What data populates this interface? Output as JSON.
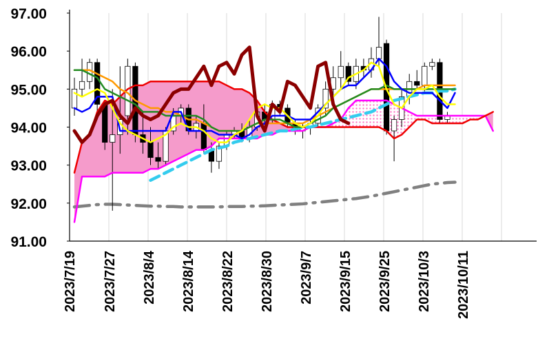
{
  "chart_data": {
    "type": "candlestick",
    "title": "",
    "xlabel": "",
    "ylabel": "",
    "ylim": [
      91.0,
      97.0
    ],
    "y_ticks": [
      "91.00",
      "92.00",
      "93.00",
      "94.00",
      "95.00",
      "96.00",
      "97.00"
    ],
    "x_tick_labels": [
      "2023/7/19",
      "2023/7/27",
      "2023/8/4",
      "2023/8/14",
      "2023/8/22",
      "2023/8/30",
      "2023/9/7",
      "2023/9/15",
      "2023/9/25",
      "2023/10/3",
      "2023/10/11"
    ],
    "grid": {
      "vertical": true,
      "horizontal": false
    },
    "legend": "none",
    "colors": {
      "cloud_bullish": "#f59bcb",
      "cloud_dotted": "#ff79c8",
      "span_a": "#ee0000",
      "span_b": "#ff00ff",
      "tenkan": "#0000ff",
      "kijun": "#228b22",
      "short_ma": "#ffff00",
      "mid_ma": "#ff9900",
      "chikou": "#8b0000",
      "ma_mid_dashed": "#33ccee",
      "ma_long_dashdot": "#808080",
      "candle_up": "#ffffff",
      "candle_down": "#000000"
    },
    "candles": [
      [
        94.5,
        95.3,
        94.3,
        95.0
      ],
      [
        95.0,
        95.8,
        94.8,
        95.2
      ],
      [
        95.2,
        95.8,
        95.0,
        95.7
      ],
      [
        95.7,
        95.8,
        94.2,
        94.6
      ],
      [
        94.6,
        94.7,
        93.4,
        93.6
      ],
      [
        93.6,
        95.0,
        91.8,
        93.8
      ],
      [
        93.8,
        95.6,
        93.3,
        94.2
      ],
      [
        94.3,
        95.8,
        93.8,
        95.6
      ],
      [
        95.6,
        95.7,
        93.6,
        93.8
      ],
      [
        93.8,
        94.4,
        93.3,
        93.6
      ],
      [
        93.6,
        94.0,
        93.0,
        93.2
      ],
      [
        93.2,
        93.6,
        92.9,
        93.1
      ],
      [
        93.1,
        94.0,
        93.0,
        93.9
      ],
      [
        93.9,
        94.5,
        93.8,
        94.3
      ],
      [
        94.3,
        94.6,
        94.1,
        94.5
      ],
      [
        94.5,
        94.6,
        93.8,
        93.9
      ],
      [
        93.9,
        94.3,
        93.7,
        94.1
      ],
      [
        94.1,
        94.6,
        93.3,
        93.4
      ],
      [
        93.4,
        93.6,
        92.8,
        93.1
      ],
      [
        93.1,
        93.6,
        92.9,
        93.5
      ],
      [
        93.5,
        93.9,
        93.4,
        93.8
      ],
      [
        93.8,
        94.0,
        93.7,
        93.9
      ],
      [
        93.9,
        94.1,
        93.6,
        93.7
      ],
      [
        93.7,
        94.2,
        93.6,
        94.0
      ],
      [
        94.0,
        94.6,
        93.9,
        94.4
      ],
      [
        94.4,
        94.6,
        94.0,
        94.2
      ],
      [
        94.2,
        94.7,
        94.1,
        94.6
      ],
      [
        94.6,
        94.7,
        94.3,
        94.5
      ],
      [
        94.5,
        94.6,
        94.0,
        94.1
      ],
      [
        94.1,
        94.2,
        93.8,
        93.9
      ],
      [
        93.9,
        94.1,
        93.7,
        94.0
      ],
      [
        94.0,
        94.2,
        93.8,
        94.1
      ],
      [
        94.1,
        94.6,
        94.0,
        94.5
      ],
      [
        94.5,
        95.2,
        94.3,
        95.0
      ],
      [
        95.0,
        95.6,
        94.8,
        95.3
      ],
      [
        95.3,
        96.0,
        95.0,
        95.6
      ],
      [
        95.6,
        95.7,
        95.1,
        95.2
      ],
      [
        95.2,
        95.8,
        95.0,
        95.6
      ],
      [
        95.6,
        95.8,
        95.3,
        95.5
      ],
      [
        95.5,
        96.1,
        95.3,
        95.8
      ],
      [
        95.8,
        96.9,
        95.6,
        96.1
      ],
      [
        96.2,
        96.3,
        93.8,
        93.9
      ],
      [
        93.9,
        94.3,
        93.1,
        94.2
      ],
      [
        94.2,
        95.0,
        94.0,
        94.8
      ],
      [
        94.8,
        95.4,
        94.6,
        95.2
      ],
      [
        95.2,
        95.5,
        95.0,
        95.1
      ],
      [
        95.1,
        95.7,
        94.9,
        95.6
      ],
      [
        95.6,
        95.8,
        95.5,
        95.7
      ],
      [
        95.7,
        95.8,
        94.1,
        94.2
      ],
      [
        94.2,
        94.4,
        94.1,
        94.3
      ]
    ],
    "tenkan": [
      94.5,
      94.4,
      94.5,
      94.8,
      94.8,
      94.8,
      93.9,
      93.9,
      93.9,
      93.9,
      93.9,
      93.9,
      93.9,
      94.4,
      94.4,
      93.9,
      93.9,
      93.9,
      93.9,
      93.8,
      93.8,
      93.8,
      93.7,
      93.8,
      94.0,
      94.1,
      94.3,
      94.3,
      94.3,
      94.2,
      94.2,
      94.2,
      94.4,
      94.6,
      94.8,
      95.0,
      95.1,
      95.1,
      95.3,
      95.5,
      95.8,
      95.6,
      95.2,
      95.0,
      94.9,
      94.9,
      94.9,
      94.9,
      94.7,
      94.5,
      94.9
    ],
    "kijun": [
      95.5,
      95.5,
      95.4,
      95.3,
      95.0,
      94.9,
      94.8,
      94.7,
      94.6,
      94.4,
      94.4,
      94.4,
      94.3,
      94.3,
      94.3,
      94.3,
      94.3,
      94.2,
      94.0,
      93.9,
      93.9,
      93.9,
      93.9,
      94.0,
      94.1,
      94.2,
      94.2,
      94.2,
      94.1,
      94.0,
      94.0,
      94.1,
      94.2,
      94.3,
      94.5,
      94.6,
      94.7,
      94.8,
      94.9,
      95.0,
      95.0,
      95.1,
      95.0,
      95.0,
      95.0,
      95.0,
      95.0,
      95.0,
      95.0,
      95.0,
      95.0
    ],
    "short_ma": [
      94.9,
      94.8,
      94.9,
      95.0,
      94.9,
      94.5,
      94.1,
      93.9,
      93.8,
      93.7,
      93.6,
      93.7,
      93.8,
      94.0,
      94.1,
      94.0,
      94.0,
      93.9,
      93.7,
      93.6,
      93.6,
      93.8,
      93.9,
      94.2,
      94.5,
      94.6,
      94.5,
      94.5,
      94.3,
      94.1,
      94.0,
      94.1,
      94.3,
      94.6,
      94.8,
      95.0,
      95.3,
      95.4,
      95.5,
      95.7,
      95.6,
      95.0,
      94.6,
      94.5,
      94.8,
      95.0,
      95.0,
      95.1,
      94.8,
      94.6,
      94.6
    ],
    "mid_ma": [
      95.5,
      95.5,
      95.5,
      95.4,
      95.3,
      95.2,
      95.0,
      94.9,
      94.7,
      94.6,
      94.5,
      94.5,
      94.4,
      94.4,
      94.3,
      94.2,
      94.2,
      94.1,
      94.0,
      93.9,
      93.9,
      93.9,
      93.9,
      94.0,
      94.1,
      94.1,
      94.1,
      94.1,
      94.1,
      94.1,
      94.1,
      94.2,
      94.3,
      94.4,
      94.5,
      94.6,
      94.7,
      94.8,
      94.9,
      95.0,
      95.0,
      95.0,
      95.0,
      95.0,
      95.0,
      95.0,
      95.1,
      95.1,
      95.1,
      95.1,
      95.1
    ],
    "ma_mid_dashed": [
      null,
      null,
      null,
      null,
      null,
      null,
      null,
      null,
      null,
      null,
      92.6,
      92.7,
      92.8,
      92.9,
      93.0,
      93.1,
      93.2,
      93.3,
      93.4,
      93.45,
      93.5,
      93.6,
      93.65,
      93.7,
      93.75,
      93.8,
      93.85,
      93.9,
      93.9,
      93.95,
      94.0,
      94.0,
      94.05,
      94.1,
      94.15,
      94.2,
      94.25,
      94.3,
      94.35,
      94.4,
      94.5,
      94.6,
      94.7,
      94.75,
      94.8,
      94.85,
      94.9,
      94.9,
      94.95,
      94.95,
      95.0
    ],
    "ma_long_dashdot": [
      91.9,
      91.92,
      91.94,
      91.96,
      91.97,
      91.97,
      91.96,
      91.95,
      91.94,
      91.93,
      91.92,
      91.92,
      91.91,
      91.91,
      91.9,
      91.9,
      91.9,
      91.9,
      91.9,
      91.9,
      91.91,
      91.91,
      91.91,
      91.92,
      91.92,
      91.93,
      91.94,
      91.95,
      91.96,
      91.97,
      91.98,
      92.0,
      92.02,
      92.04,
      92.06,
      92.08,
      92.1,
      92.12,
      92.15,
      92.18,
      92.22,
      92.26,
      92.3,
      92.34,
      92.38,
      92.42,
      92.46,
      92.5,
      92.52,
      92.54,
      92.55
    ],
    "span_a": [
      92.8,
      93.6,
      93.8,
      94.4,
      94.7,
      94.6,
      94.8,
      95.0,
      95.1,
      95.1,
      95.2,
      95.2,
      95.2,
      95.2,
      95.2,
      95.2,
      95.2,
      95.2,
      95.2,
      95.2,
      95.1,
      95.0,
      95.0,
      94.9,
      94.7,
      94.4,
      94.2,
      94.1,
      94.0,
      94.0,
      94.0,
      94.0,
      94.0,
      94.0,
      94.0,
      94.0,
      94.0,
      94.0,
      94.0,
      94.0,
      94.0,
      93.9,
      93.7,
      93.8,
      94.0,
      94.2,
      94.2,
      94.1,
      94.1,
      94.1,
      94.1,
      94.1,
      94.2,
      94.2,
      94.3,
      94.4
    ],
    "span_b": [
      91.5,
      92.7,
      92.7,
      92.7,
      92.7,
      92.8,
      92.8,
      92.8,
      92.8,
      92.8,
      92.9,
      92.9,
      93.0,
      93.1,
      93.2,
      93.3,
      93.4,
      93.4,
      93.5,
      93.7,
      93.7,
      93.7,
      93.7,
      93.7,
      93.7,
      93.8,
      93.8,
      93.9,
      93.9,
      93.9,
      93.9,
      94.0,
      94.0,
      94.0,
      94.1,
      94.2,
      94.5,
      94.7,
      94.7,
      94.7,
      94.7,
      94.7,
      94.6,
      94.5,
      94.4,
      94.3,
      94.3,
      94.3,
      94.3,
      94.3,
      94.3,
      94.3,
      94.3,
      94.3,
      94.3,
      93.9
    ],
    "chikou": [
      93.9,
      93.6,
      93.8,
      94.3,
      94.6,
      94.7,
      94.3,
      94.1,
      94.5,
      94.3,
      94.2,
      94.3,
      94.6,
      94.9,
      95.0,
      95.0,
      95.3,
      95.6,
      95.1,
      95.6,
      95.7,
      95.4,
      95.9,
      96.1,
      94.3,
      93.9,
      94.6,
      94.4,
      95.2,
      95.1,
      94.8,
      94.5,
      95.6,
      95.7,
      94.6,
      94.2,
      94.1
    ]
  }
}
